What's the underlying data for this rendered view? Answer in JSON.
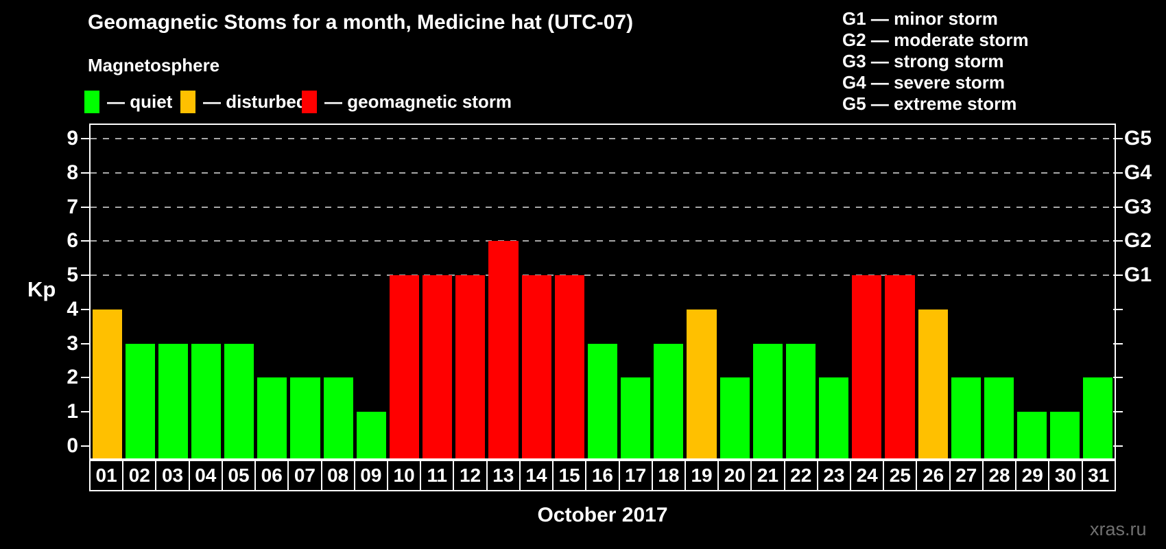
{
  "header": {
    "title": "Geomagnetic Stoms for a month, Medicine hat (UTC-07)",
    "subtitle": "Magnetosphere"
  },
  "legend": {
    "items": [
      {
        "key": "quiet",
        "label": "— quiet",
        "color": "#00FF00"
      },
      {
        "key": "disturbed",
        "label": "— disturbed",
        "color": "#FFC000"
      },
      {
        "key": "storm",
        "label": "— geomagnetic storm",
        "color": "#FF0000"
      }
    ]
  },
  "g_legend": [
    "G1 — minor storm",
    "G2 — moderate storm",
    "G3 — strong storm",
    "G4 — severe storm",
    "G5 — extreme storm"
  ],
  "watermark": "xras.ru",
  "chart_data": {
    "type": "bar",
    "title": "Geomagnetic Stoms for a month, Medicine hat (UTC-07)",
    "xlabel": "October 2017",
    "ylabel": "Kp",
    "ylim": [
      0,
      9
    ],
    "y_ticks": [
      0,
      1,
      2,
      3,
      4,
      5,
      6,
      7,
      8,
      9
    ],
    "gridlines_at": [
      5,
      6,
      7,
      8,
      9
    ],
    "grid_style": "dashed",
    "right_axis_labels": [
      {
        "kp": 5,
        "label": "G1"
      },
      {
        "kp": 6,
        "label": "G2"
      },
      {
        "kp": 7,
        "label": "G3"
      },
      {
        "kp": 8,
        "label": "G4"
      },
      {
        "kp": 9,
        "label": "G5"
      }
    ],
    "categories": [
      "01",
      "02",
      "03",
      "04",
      "05",
      "06",
      "07",
      "08",
      "09",
      "10",
      "11",
      "12",
      "13",
      "14",
      "15",
      "16",
      "17",
      "18",
      "19",
      "20",
      "21",
      "22",
      "23",
      "24",
      "25",
      "26",
      "27",
      "28",
      "29",
      "30",
      "31"
    ],
    "values": [
      4,
      3,
      3,
      3,
      3,
      2,
      2,
      2,
      1,
      5,
      5,
      5,
      6,
      5,
      5,
      3,
      2,
      3,
      4,
      2,
      3,
      3,
      2,
      5,
      5,
      4,
      2,
      2,
      1,
      1,
      2
    ],
    "statuses": [
      "disturbed",
      "quiet",
      "quiet",
      "quiet",
      "quiet",
      "quiet",
      "quiet",
      "quiet",
      "quiet",
      "storm",
      "storm",
      "storm",
      "storm",
      "storm",
      "storm",
      "quiet",
      "quiet",
      "quiet",
      "disturbed",
      "quiet",
      "quiet",
      "quiet",
      "quiet",
      "storm",
      "storm",
      "disturbed",
      "quiet",
      "quiet",
      "quiet",
      "quiet",
      "quiet"
    ],
    "status_colors": {
      "quiet": "#00FF00",
      "disturbed": "#FFC000",
      "storm": "#FF0000"
    },
    "color_rule": "Kp<=3 quiet, Kp=4 disturbed, Kp>=5 geomagnetic storm"
  }
}
